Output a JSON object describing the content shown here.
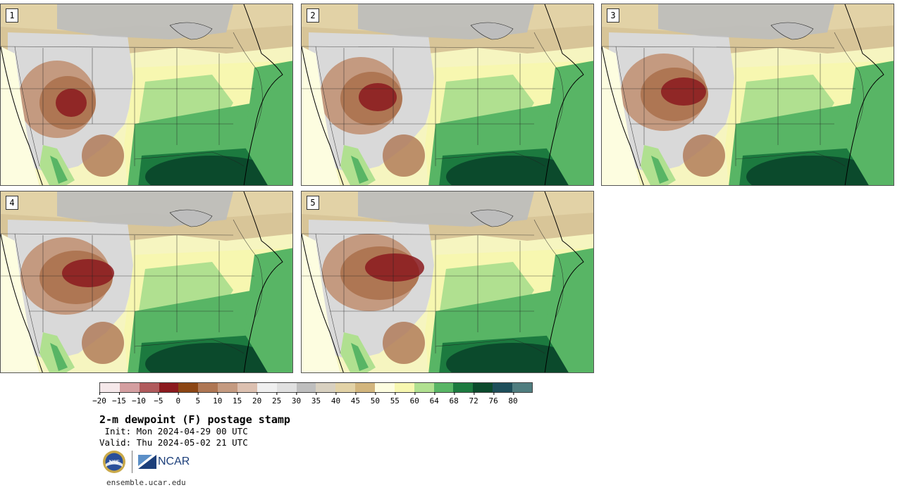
{
  "panels": [
    {
      "label": "1",
      "variant": 0
    },
    {
      "label": "2",
      "variant": 1
    },
    {
      "label": "3",
      "variant": 2
    },
    {
      "label": "4",
      "variant": 3
    },
    {
      "label": "5",
      "variant": 4
    }
  ],
  "colorbar": {
    "colors": [
      "#f5e8ea",
      "#d49ea0",
      "#b05a5c",
      "#8b1a1e",
      "#8b4513",
      "#ae7653",
      "#c49a80",
      "#dcc0b0",
      "#efefef",
      "#e0e0e0",
      "#bebebe",
      "#d8d0c0",
      "#e2d2a6",
      "#d2b57d",
      "#fdfde0",
      "#f7f7b0",
      "#b0e090",
      "#58b565",
      "#1c7a3f",
      "#0b4a2c",
      "#1d4e5a",
      "#4f7d7f"
    ],
    "tick_labels": [
      "−20",
      "−15",
      "−10",
      "−5",
      "0",
      "5",
      "10",
      "15",
      "20",
      "25",
      "30",
      "35",
      "40",
      "45",
      "50",
      "55",
      "60",
      "64",
      "68",
      "72",
      "76",
      "80"
    ]
  },
  "title": "2-m dewpoint (F) postage stamp",
  "init_text": " Init: Mon 2024-04-29 00 UTC",
  "valid_text": "Valid: Thu 2024-05-02 21 UTC",
  "logos": {
    "nsf": "NSF",
    "ncar": "NCAR"
  },
  "footer_url": "ensemble.ucar.edu"
}
